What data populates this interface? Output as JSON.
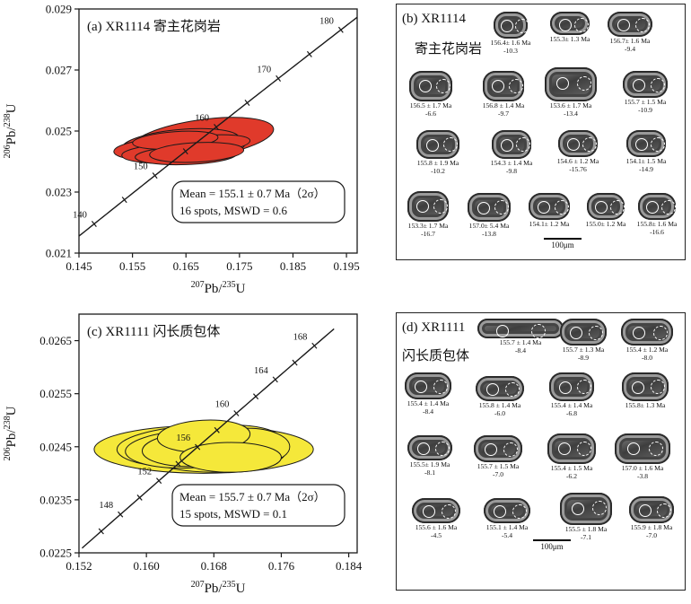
{
  "chart_data": [
    {
      "type": "scatter",
      "panel": "(a)",
      "title": "(a)  XR1114 寄主花岗岩",
      "sample": "XR1114",
      "rock": "寄主花岗岩",
      "xlabel_base": "Pb/",
      "xlabel_sup1": "207",
      "xlabel_sup2": "235",
      "xlabel_end": "U",
      "ylabel_base": "Pb/",
      "ylabel_sup1": "206",
      "ylabel_sup2": "238",
      "ylabel_end": "U",
      "xlim": [
        0.145,
        0.197
      ],
      "ylim": [
        0.021,
        0.029
      ],
      "x_ticks": [
        "0.145",
        "0.155",
        "0.165",
        "0.175",
        "0.185",
        "0.195"
      ],
      "x_tick_values": [
        0.145,
        0.155,
        0.165,
        0.175,
        0.185,
        0.195
      ],
      "y_ticks": [
        "0.021",
        "0.023",
        "0.025",
        "0.027",
        "0.029"
      ],
      "y_tick_values": [
        0.021,
        0.023,
        0.025,
        0.027,
        0.029
      ],
      "concordia_ages_ma": [
        140,
        145,
        150,
        155,
        160,
        165,
        170,
        175,
        180
      ],
      "concordia_labels": [
        "140",
        "150",
        "160",
        "170",
        "180"
      ],
      "ellipse_fill": "#e03a2b",
      "ellipses": [
        {
          "x": 0.168,
          "y": 0.02475,
          "rx": 0.0135,
          "ry": 0.00062,
          "rot": -8
        },
        {
          "x": 0.164,
          "y": 0.0246,
          "rx": 0.011,
          "ry": 0.00045,
          "rot": -5
        },
        {
          "x": 0.166,
          "y": 0.02445,
          "rx": 0.01,
          "ry": 0.0004,
          "rot": -4
        },
        {
          "x": 0.163,
          "y": 0.02435,
          "rx": 0.0095,
          "ry": 0.00038,
          "rot": -3
        },
        {
          "x": 0.16,
          "y": 0.0244,
          "rx": 0.0085,
          "ry": 0.00035,
          "rot": -3
        },
        {
          "x": 0.168,
          "y": 0.02455,
          "rx": 0.009,
          "ry": 0.0003,
          "rot": -5
        },
        {
          "x": 0.161,
          "y": 0.02425,
          "rx": 0.008,
          "ry": 0.0003,
          "rot": -2
        },
        {
          "x": 0.165,
          "y": 0.0242,
          "rx": 0.0095,
          "ry": 0.0003,
          "rot": -2
        },
        {
          "x": 0.163,
          "y": 0.0247,
          "rx": 0.008,
          "ry": 0.00028,
          "rot": -4
        },
        {
          "x": 0.167,
          "y": 0.0243,
          "rx": 0.0088,
          "ry": 0.00032,
          "rot": -3
        }
      ],
      "mean_line1": "Mean = 155.1 ± 0.7 Ma（2σ）",
      "mean_line2": "16 spots, MSWD = 0.6"
    },
    {
      "type": "scatter",
      "panel": "(c)",
      "title": "(c)  XR1111  闪长质包体",
      "sample": "XR1111",
      "rock": "闪长质包体",
      "xlabel_base": "Pb/",
      "xlabel_sup1": "207",
      "xlabel_sup2": "235",
      "xlabel_end": "U",
      "ylabel_base": "Pb/",
      "ylabel_sup1": "206",
      "ylabel_sup2": "238",
      "ylabel_end": "U",
      "xlim": [
        0.152,
        0.185
      ],
      "ylim": [
        0.0225,
        0.027
      ],
      "x_ticks": [
        "0.152",
        "0.160",
        "0.168",
        "0.176",
        "0.184"
      ],
      "x_tick_values": [
        0.152,
        0.16,
        0.168,
        0.176,
        0.184
      ],
      "y_ticks": [
        "0.0225",
        "0.0235",
        "0.0245",
        "0.0255",
        "0.0265"
      ],
      "y_tick_values": [
        0.0225,
        0.0235,
        0.0245,
        0.0255,
        0.0265
      ],
      "concordia_ages_ma": [
        146,
        148,
        150,
        152,
        154,
        156,
        158,
        160,
        162,
        164,
        166,
        168
      ],
      "concordia_labels": [
        "148",
        "152",
        "156",
        "160",
        "164",
        "168"
      ],
      "ellipse_fill": "#f5e83a",
      "ellipses": [
        {
          "x": 0.1668,
          "y": 0.02445,
          "rx": 0.013,
          "ry": 0.00045,
          "rot": 0
        },
        {
          "x": 0.1665,
          "y": 0.0245,
          "rx": 0.01,
          "ry": 0.0004,
          "rot": -2
        },
        {
          "x": 0.168,
          "y": 0.0244,
          "rx": 0.0085,
          "ry": 0.00038,
          "rot": 0
        },
        {
          "x": 0.165,
          "y": 0.02445,
          "rx": 0.0075,
          "ry": 0.00035,
          "rot": -2
        },
        {
          "x": 0.169,
          "y": 0.02455,
          "rx": 0.007,
          "ry": 0.00035,
          "rot": -4
        },
        {
          "x": 0.1655,
          "y": 0.02445,
          "rx": 0.006,
          "ry": 0.00032,
          "rot": -2
        },
        {
          "x": 0.172,
          "y": 0.0245,
          "rx": 0.005,
          "ry": 0.00035,
          "rot": 0
        },
        {
          "x": 0.1668,
          "y": 0.0247,
          "rx": 0.0055,
          "ry": 0.0003,
          "rot": -3
        },
        {
          "x": 0.17,
          "y": 0.0243,
          "rx": 0.006,
          "ry": 0.00028,
          "rot": 0
        }
      ],
      "mean_line1": "Mean = 155.7 ± 0.7 Ma（2σ）",
      "mean_line2": "15 spots, MSWD = 0.1"
    }
  ],
  "gallery_b": {
    "title": "(b)  XR1114",
    "subtitle": "寄主花岗岩",
    "scale_label": "100μm",
    "zircons": [
      {
        "age": "156.4± 1.6 Ma",
        "eps": "-10.3"
      },
      {
        "age": "155.3± 1.3 Ma",
        "eps": ""
      },
      {
        "age": "156.7± 1.6 Ma",
        "eps": "-9.4"
      },
      {
        "age": "156.5 ± 1.7 Ma",
        "eps": "-6.6"
      },
      {
        "age": "156.8 ± 1.4 Ma",
        "eps": "-9.7"
      },
      {
        "age": "153.6 ± 1.7 Ma",
        "eps": "-13.4"
      },
      {
        "age": "155.7 ± 1.5 Ma",
        "eps": "-10.9"
      },
      {
        "age": "155.8 ± 1.9 Ma",
        "eps": "-10.2"
      },
      {
        "age": "154.3 ± 1.4 Ma",
        "eps": "-9.8"
      },
      {
        "age": "154.6 ± 1.2 Ma",
        "eps": "-15.76"
      },
      {
        "age": "154.1± 1.5 Ma",
        "eps": "-14.9"
      },
      {
        "age": "153.3± 1.7 Ma",
        "eps": "-16.7"
      },
      {
        "age": "157.0± 5.4 Ma",
        "eps": "-13.8"
      },
      {
        "age": "154.1± 1.2 Ma",
        "eps": ""
      },
      {
        "age": "155.0± 1.2 Ma",
        "eps": ""
      },
      {
        "age": "155.8± 1.6 Ma",
        "eps": "-16.6"
      }
    ]
  },
  "gallery_d": {
    "title": "(d)  XR1111",
    "subtitle": "闪长质包体",
    "scale_label": "100μm",
    "zircons": [
      {
        "age": "155.7 ± 1.4 Ma",
        "eps": "-8.4"
      },
      {
        "age": "155.7 ± 1.3 Ma",
        "eps": "-8.9"
      },
      {
        "age": "155.4 ± 1.2 Ma",
        "eps": "-8.0"
      },
      {
        "age": "155.4 ± 1.4 Ma",
        "eps": "-8.4"
      },
      {
        "age": "155.8 ± 1.4 Ma",
        "eps": "-6.0"
      },
      {
        "age": "155.4 ± 1.4 Ma",
        "eps": "-6.8"
      },
      {
        "age": "155.8± 1.3 Ma",
        "eps": ""
      },
      {
        "age": "155.5± 1.9 Ma",
        "eps": "-8.1"
      },
      {
        "age": "155.7 ± 1.5 Ma",
        "eps": "-7.0"
      },
      {
        "age": "155.4 ± 1.5 Ma",
        "eps": "-6.2"
      },
      {
        "age": "157.0 ± 1.6 Ma",
        "eps": "-3.8"
      },
      {
        "age": "155.6 ± 1.6 Ma",
        "eps": "-4.5"
      },
      {
        "age": "155.1 ± 1.4 Ma",
        "eps": "-5.4"
      },
      {
        "age": "155.5 ± 1.8 Ma",
        "eps": "-7.1"
      },
      {
        "age": "155.9 ± 1.8 Ma",
        "eps": "-7.0"
      }
    ]
  }
}
